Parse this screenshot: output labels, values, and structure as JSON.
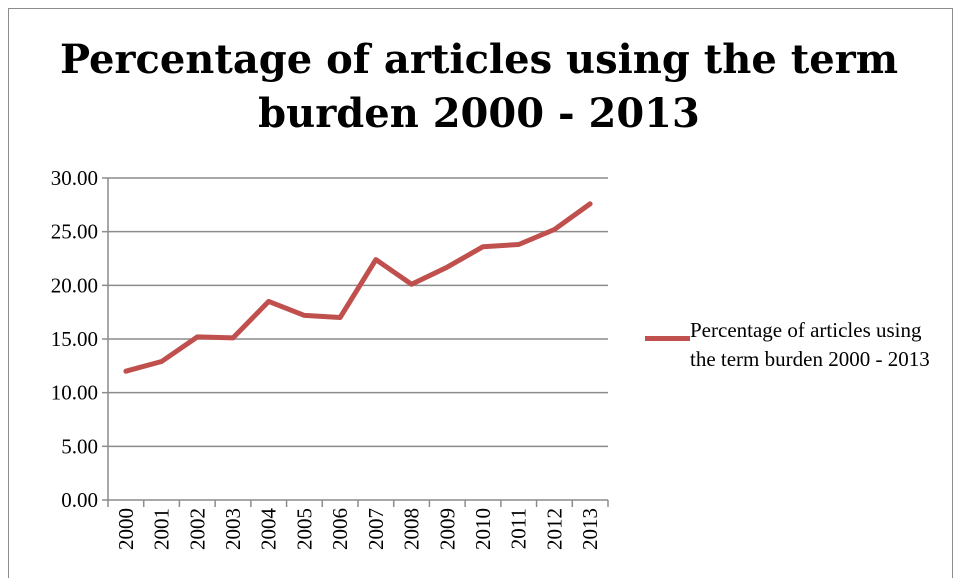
{
  "chart_data": {
    "type": "line",
    "title_lines": [
      "Percentage of articles using the term",
      "burden 2000 - 2013"
    ],
    "xlabel": "",
    "ylabel": "",
    "categories": [
      "2000",
      "2001",
      "2002",
      "2003",
      "2004",
      "2005",
      "2006",
      "2007",
      "2008",
      "2009",
      "2010",
      "2011",
      "2012",
      "2013"
    ],
    "y_ticks": [
      "0.00",
      "5.00",
      "10.00",
      "15.00",
      "20.00",
      "25.00",
      "30.00"
    ],
    "ylim": [
      0,
      30
    ],
    "grid": true,
    "legend_position": "right",
    "series": [
      {
        "name": "Percentage of articles using the term burden 2000 - 2013",
        "color": "#c0504d",
        "values": [
          12.0,
          12.9,
          15.2,
          15.1,
          18.5,
          17.2,
          17.0,
          22.4,
          20.1,
          21.7,
          23.6,
          23.8,
          25.2,
          27.6
        ]
      }
    ]
  }
}
